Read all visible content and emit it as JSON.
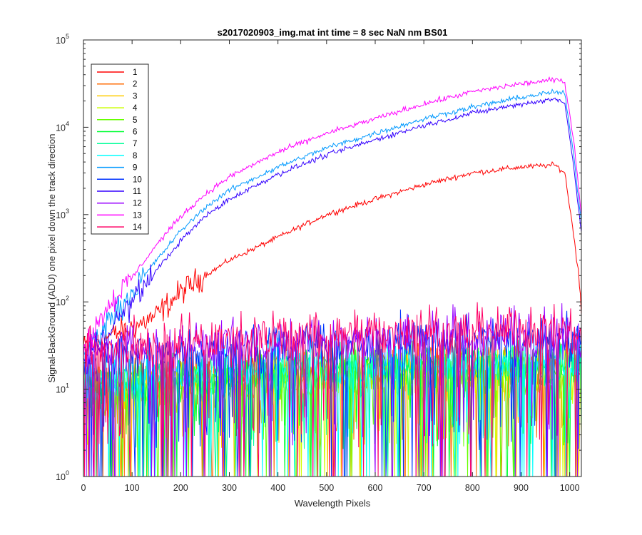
{
  "chart_data": {
    "type": "line",
    "title": "s2017020903_img.mat int time = 8 sec  NaN nm BS01",
    "xlabel": "Wavelength Pixels",
    "ylabel": "Signal-BackGround (ADU) one pixel down the track direction",
    "xlim": [
      0,
      1024
    ],
    "ylim": [
      1,
      100000
    ],
    "yscale": "log",
    "grid": false,
    "legend_position": "top-left",
    "x_ticks": [
      "0",
      "100",
      "200",
      "300",
      "400",
      "500",
      "600",
      "700",
      "800",
      "900",
      "1000"
    ],
    "y_ticks": [
      {
        "base": "10",
        "exp": "0"
      },
      {
        "base": "10",
        "exp": "1"
      },
      {
        "base": "10",
        "exp": "2"
      },
      {
        "base": "10",
        "exp": "3"
      },
      {
        "base": "10",
        "exp": "4"
      },
      {
        "base": "10",
        "exp": "5"
      }
    ],
    "series": [
      {
        "name": "1",
        "color": "#ff0000",
        "kind": "signal",
        "x": [
          0,
          50,
          100,
          150,
          200,
          250,
          300,
          400,
          500,
          600,
          700,
          800,
          900,
          970,
          990,
          1010,
          1024
        ],
        "y": [
          30,
          40,
          50,
          70,
          130,
          200,
          300,
          550,
          1000,
          1500,
          2200,
          3000,
          3500,
          3700,
          3000,
          500,
          100
        ]
      },
      {
        "name": "2",
        "color": "#ff6a00",
        "kind": "noise",
        "mean": 16
      },
      {
        "name": "3",
        "color": "#ffcc00",
        "kind": "noise",
        "mean": 12
      },
      {
        "name": "4",
        "color": "#ccff00",
        "kind": "noise",
        "mean": 12
      },
      {
        "name": "5",
        "color": "#66ff00",
        "kind": "noise",
        "mean": 14
      },
      {
        "name": "6",
        "color": "#00ff33",
        "kind": "noise",
        "mean": 15
      },
      {
        "name": "7",
        "color": "#00ff99",
        "kind": "noise",
        "mean": 16
      },
      {
        "name": "8",
        "color": "#00ffff",
        "kind": "noise",
        "mean": 18
      },
      {
        "name": "9",
        "color": "#0099ff",
        "kind": "signal",
        "x": [
          0,
          50,
          100,
          150,
          200,
          250,
          300,
          400,
          500,
          600,
          700,
          800,
          900,
          970,
          990,
          1010,
          1024
        ],
        "y": [
          25,
          60,
          130,
          300,
          650,
          1200,
          1900,
          3500,
          5800,
          8500,
          12500,
          17000,
          22000,
          25500,
          24000,
          4000,
          800
        ]
      },
      {
        "name": "10",
        "color": "#0033ff",
        "kind": "noise",
        "mean": 30
      },
      {
        "name": "11",
        "color": "#3300ff",
        "kind": "signal",
        "x": [
          0,
          50,
          100,
          150,
          200,
          250,
          300,
          400,
          500,
          600,
          700,
          800,
          900,
          970,
          990,
          1010,
          1024
        ],
        "y": [
          20,
          45,
          100,
          230,
          500,
          950,
          1500,
          2900,
          4800,
          7200,
          10500,
          14500,
          18500,
          21000,
          19500,
          3000,
          600
        ]
      },
      {
        "name": "12",
        "color": "#9900ff",
        "kind": "noise",
        "mean": 36
      },
      {
        "name": "13",
        "color": "#ff00ff",
        "kind": "signal",
        "x": [
          0,
          50,
          100,
          150,
          200,
          250,
          300,
          400,
          500,
          600,
          700,
          800,
          900,
          970,
          990,
          1010,
          1024
        ],
        "y": [
          30,
          90,
          190,
          450,
          950,
          1700,
          2700,
          5200,
          8500,
          12500,
          18500,
          25500,
          31500,
          35000,
          33000,
          6000,
          1000
        ]
      },
      {
        "name": "14",
        "color": "#ff0066",
        "kind": "noise",
        "mean": 40
      }
    ]
  }
}
